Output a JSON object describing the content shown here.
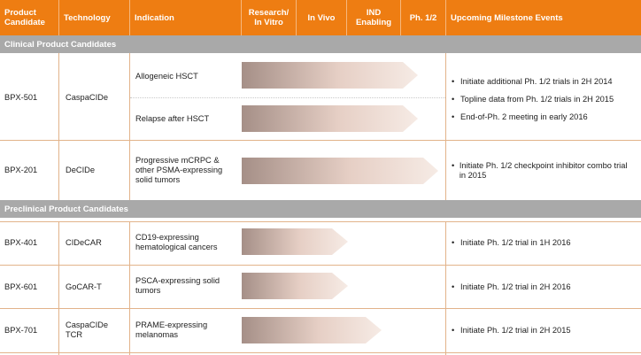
{
  "header": {
    "product_candidate": "Product Candidate",
    "technology": "Technology",
    "indication": "Indication",
    "research": "Research/ In Vitro",
    "in_vivo": "In Vivo",
    "ind": "IND Enabling",
    "ph12": "Ph. 1/2",
    "milestones": "Upcoming Milestone Events"
  },
  "sections": {
    "clinical": "Clinical Product Candidates",
    "preclinical": "Preclinical Product Candidates"
  },
  "rows": {
    "bpx501": {
      "candidate": "BPX-501",
      "technology": "CaspaCIDe",
      "indication_a": "Allogeneic HSCT",
      "indication_b": "Relapse after HSCT",
      "milestones": [
        "Initiate additional Ph. 1/2 trials in 2H 2014",
        "Topline data from Ph. 1/2 trials in 2H 2015",
        "End-of-Ph. 2 meeting in early 2016"
      ]
    },
    "bpx201": {
      "candidate": "BPX-201",
      "technology": "DeCIDe",
      "indication": "Progressive mCRPC & other PSMA-expressing solid tumors",
      "milestones": [
        "Initiate Ph. 1/2 checkpoint inhibitor combo trial in 2015"
      ]
    },
    "bpx401": {
      "candidate": "BPX-401",
      "technology": "CIDeCAR",
      "indication": "CD19-expressing hematological cancers",
      "milestones": [
        "Initiate Ph. 1/2 trial in 1H 2016"
      ]
    },
    "bpx601": {
      "candidate": "BPX-601",
      "technology": "GoCAR-T",
      "indication": "PSCA-expressing solid tumors",
      "milestones": [
        "Initiate Ph. 1/2 trial in 2H 2016"
      ]
    },
    "bpx701": {
      "candidate": "BPX-701",
      "technology": "CaspaCIDe TCR",
      "indication": "PRAME-expressing melanomas",
      "milestones": [
        "Initiate Ph. 1/2 trial in 2H 2015"
      ]
    }
  },
  "progress": {
    "stages": [
      "Research/ In Vitro",
      "In Vivo",
      "IND Enabling",
      "Ph. 1/2"
    ],
    "bpx501_allogeneic_hsct": "Ph. 1/2",
    "bpx501_relapse_after_hsct": "Ph. 1/2",
    "bpx201": "Ph. 1/2",
    "bpx401": "In Vivo",
    "bpx601": "In Vivo",
    "bpx701": "IND Enabling"
  },
  "colors": {
    "header_orange": "#ee7d12",
    "section_gray": "#a9a9a9",
    "arrow_light": "#f3e3dc",
    "arrow_dark": "#a58f87"
  }
}
